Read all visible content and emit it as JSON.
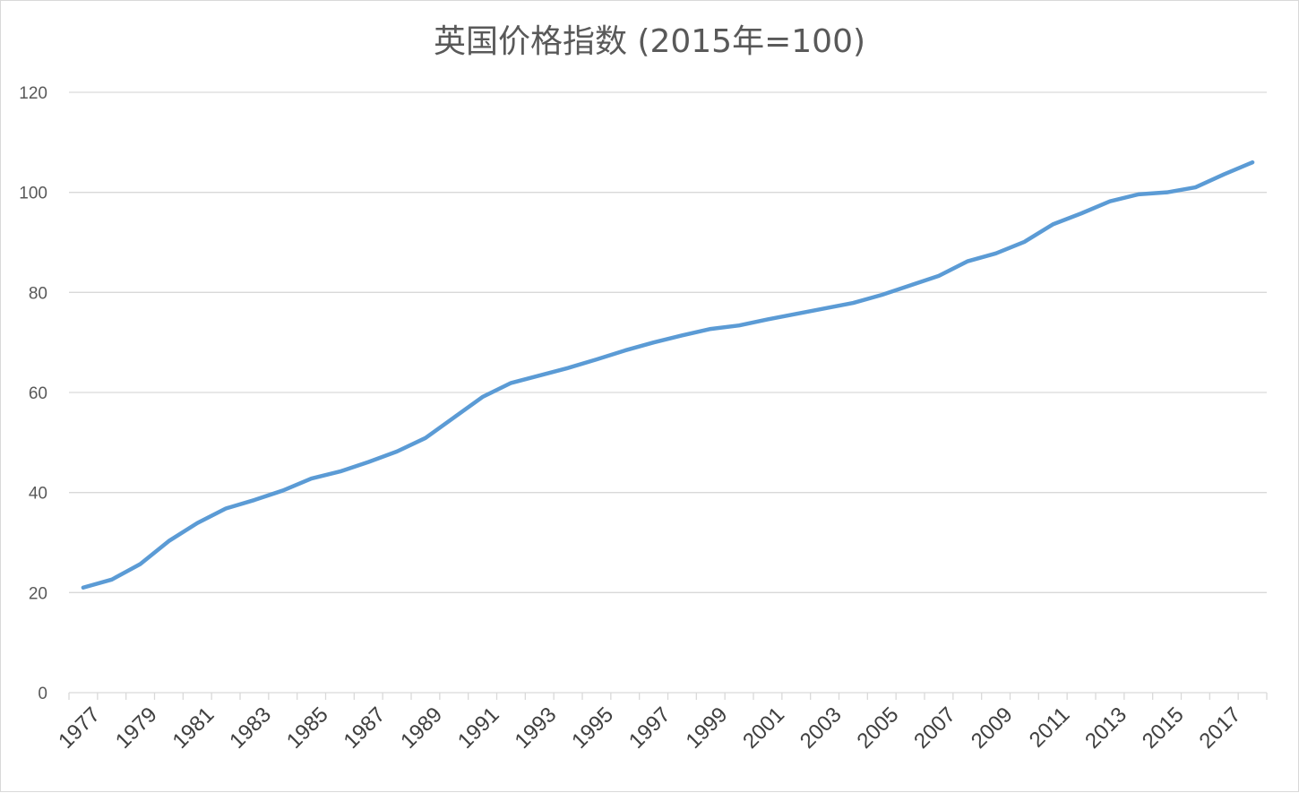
{
  "chart_data": {
    "type": "line",
    "title": "英国价格指数 (2015年=100)",
    "xlabel": "",
    "ylabel": "",
    "ylim": [
      0,
      120
    ],
    "yticks": [
      0,
      20,
      40,
      60,
      80,
      100,
      120
    ],
    "grid": true,
    "legend": "none",
    "x": [
      1977,
      1978,
      1979,
      1980,
      1981,
      1982,
      1983,
      1984,
      1985,
      1986,
      1987,
      1988,
      1989,
      1990,
      1991,
      1992,
      1993,
      1994,
      1995,
      1996,
      1997,
      1998,
      1999,
      2000,
      2001,
      2002,
      2003,
      2004,
      2005,
      2006,
      2007,
      2008,
      2009,
      2010,
      2011,
      2012,
      2013,
      2014,
      2015,
      2016,
      2017,
      2018
    ],
    "x_tick_labels": [
      "1977",
      "1979",
      "1981",
      "1983",
      "1985",
      "1987",
      "1989",
      "1991",
      "1993",
      "1995",
      "1997",
      "1999",
      "2001",
      "2003",
      "2005",
      "2007",
      "2009",
      "2011",
      "2013",
      "2015",
      "2017"
    ],
    "series": [
      {
        "color": "#5b9bd5",
        "values": [
          21.0,
          22.6,
          25.7,
          30.3,
          33.9,
          36.8,
          38.5,
          40.4,
          42.8,
          44.2,
          46.1,
          48.2,
          50.9,
          55.0,
          59.1,
          61.9,
          63.4,
          64.9,
          66.6,
          68.4,
          70.0,
          71.4,
          72.7,
          73.4,
          74.6,
          75.7,
          76.8,
          77.9,
          79.5,
          81.4,
          83.3,
          86.2,
          87.8,
          90.1,
          93.6,
          95.8,
          98.2,
          99.6,
          100.0,
          101.0,
          103.6,
          106.0
        ]
      }
    ]
  },
  "colors": {
    "line": "#5b9bd5",
    "grid": "#d9d9d9",
    "text": "#595959"
  }
}
